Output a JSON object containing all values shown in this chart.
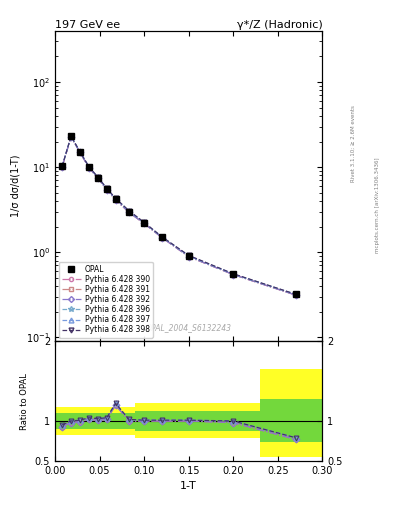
{
  "title_left": "197 GeV ee",
  "title_right": "γ*/Z (Hadronic)",
  "xlabel": "1-T",
  "ylabel_main": "1/σ dσ/d(1-T)",
  "ylabel_ratio": "Ratio to OPAL",
  "right_label_top": "Rivet 3.1.10; ≥ 2.6M events",
  "right_label_bottom": "mcplots.cern.ch [arXiv:1306.3436]",
  "watermark": "OPAL_2004_S6132243",
  "opal_x": [
    0.008,
    0.018,
    0.028,
    0.038,
    0.048,
    0.058,
    0.068,
    0.083,
    0.1,
    0.12,
    0.15,
    0.2,
    0.27
  ],
  "opal_y": [
    10.2,
    23.0,
    15.0,
    10.0,
    7.5,
    5.5,
    4.2,
    3.0,
    2.2,
    1.5,
    0.9,
    0.55,
    0.32
  ],
  "mc390_y": [
    10.1,
    22.8,
    14.9,
    9.9,
    7.45,
    5.45,
    4.15,
    2.95,
    2.18,
    1.49,
    0.89,
    0.548,
    0.315
  ],
  "mc391_y": [
    10.1,
    22.8,
    14.9,
    9.9,
    7.45,
    5.45,
    4.15,
    2.95,
    2.18,
    1.49,
    0.89,
    0.548,
    0.315
  ],
  "mc392_y": [
    10.1,
    22.8,
    14.9,
    9.9,
    7.45,
    5.45,
    4.15,
    2.95,
    2.18,
    1.49,
    0.89,
    0.548,
    0.315
  ],
  "mc396_y": [
    10.2,
    23.0,
    15.1,
    10.1,
    7.6,
    5.6,
    4.25,
    3.05,
    2.22,
    1.51,
    0.91,
    0.555,
    0.32
  ],
  "mc397_y": [
    10.2,
    23.0,
    15.1,
    10.1,
    7.6,
    5.6,
    4.25,
    3.05,
    2.22,
    1.51,
    0.91,
    0.555,
    0.32
  ],
  "mc398_y": [
    10.2,
    23.1,
    15.15,
    10.15,
    7.65,
    5.65,
    4.3,
    3.08,
    2.25,
    1.52,
    0.92,
    0.56,
    0.322
  ],
  "ratio390": [
    0.93,
    0.98,
    0.99,
    1.02,
    1.01,
    1.02,
    1.2,
    1.0,
    1.0,
    1.0,
    1.0,
    0.98,
    0.77
  ],
  "ratio391": [
    0.93,
    0.98,
    0.99,
    1.02,
    1.01,
    1.02,
    1.2,
    1.0,
    1.0,
    1.0,
    1.0,
    0.98,
    0.77
  ],
  "ratio392": [
    0.93,
    0.98,
    0.99,
    1.02,
    1.01,
    1.02,
    1.2,
    1.0,
    1.0,
    1.0,
    1.0,
    0.98,
    0.77
  ],
  "ratio396": [
    0.95,
    1.0,
    1.01,
    1.04,
    1.03,
    1.04,
    1.22,
    1.02,
    1.01,
    1.01,
    1.01,
    1.0,
    0.79
  ],
  "ratio397": [
    0.95,
    1.0,
    1.01,
    1.04,
    1.03,
    1.04,
    1.22,
    1.02,
    1.01,
    1.01,
    1.01,
    1.0,
    0.79
  ],
  "ratio398": [
    0.95,
    1.0,
    1.01,
    1.04,
    1.03,
    1.04,
    1.22,
    1.02,
    1.01,
    1.01,
    1.01,
    1.0,
    0.79
  ],
  "colors": {
    "390": "#cc77aa",
    "391": "#cc8888",
    "392": "#8877cc",
    "396": "#77aacc",
    "397": "#7799dd",
    "398": "#443366"
  },
  "xlim": [
    0.0,
    0.3
  ],
  "ylim_main": [
    0.09,
    400
  ],
  "ylim_ratio": [
    0.5,
    2.0
  ],
  "background_color": "#ffffff"
}
